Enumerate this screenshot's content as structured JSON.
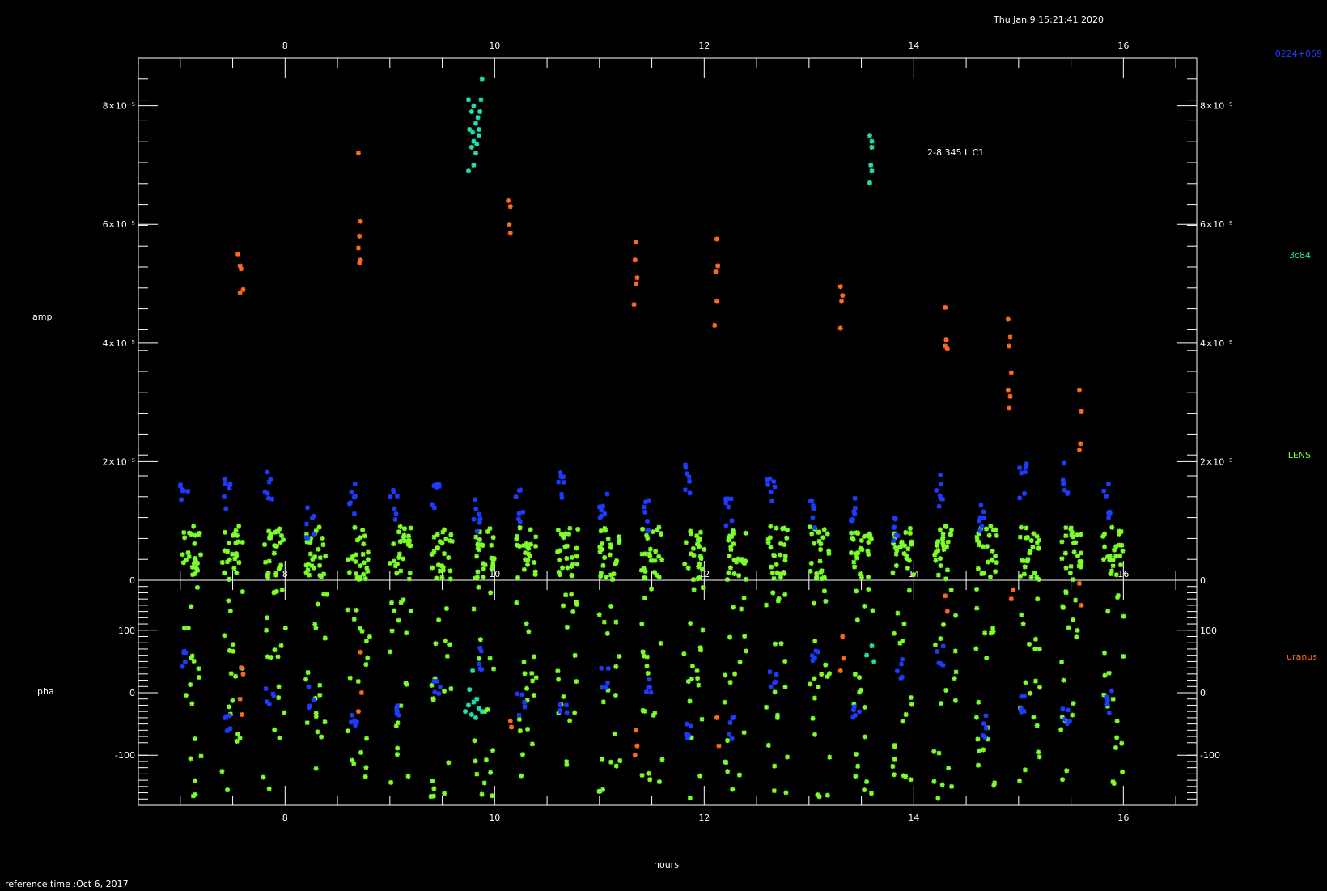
{
  "header": {
    "timestamp": "Thu Jan  9 15:21:41 2020"
  },
  "footer": {
    "reference": "reference time :Oct  6, 2017"
  },
  "annotation": "2-8 345 L C1",
  "sources": [
    {
      "name": "0224+069",
      "color": "#1e3cff"
    },
    {
      "name": "3c84",
      "color": "#20e0b0"
    },
    {
      "name": "LENS",
      "color": "#7cff2a"
    },
    {
      "name": "uranus",
      "color": "#ff6a20"
    }
  ],
  "chart_data": {
    "type": "scatter",
    "xlabel": "hours",
    "xlim": [
      6.6,
      16.7
    ],
    "xticks": [
      "8",
      "10",
      "12",
      "14",
      "16"
    ],
    "panels": [
      {
        "name": "amp",
        "ylabel": "amp",
        "ylim": [
          0,
          8.8e-05
        ],
        "yticks": [
          {
            "v": 0,
            "label": "0"
          },
          {
            "v": 2e-05,
            "label": "2×10⁻⁵"
          },
          {
            "v": 4e-05,
            "label": "4×10⁻⁵"
          },
          {
            "v": 6e-05,
            "label": "6×10⁻⁵"
          },
          {
            "v": 8e-05,
            "label": "8×10⁻⁵"
          }
        ],
        "series": [
          {
            "name": "uranus",
            "x": [
              7.55,
              7.57,
              7.58,
              7.57,
              7.6,
              8.7,
              8.72,
              8.71,
              8.7,
              8.72,
              8.71,
              10.13,
              10.15,
              10.14,
              10.15,
              11.35,
              11.34,
              11.36,
              11.33,
              11.35,
              12.12,
              12.13,
              12.11,
              12.12,
              12.1,
              13.3,
              13.32,
              13.31,
              13.3,
              14.3,
              14.31,
              14.3,
              14.32,
              14.9,
              14.92,
              14.91,
              14.93,
              14.9,
              14.92,
              14.91,
              15.58,
              15.6,
              15.59,
              15.58
            ],
            "y": [
              5.5e-05,
              5.3e-05,
              5.25e-05,
              4.85e-05,
              4.9e-05,
              7.2e-05,
              6.05e-05,
              5.8e-05,
              5.6e-05,
              5.4e-05,
              5.35e-05,
              6.4e-05,
              6.3e-05,
              6e-05,
              5.85e-05,
              5.7e-05,
              5.4e-05,
              5.1e-05,
              4.65e-05,
              5e-05,
              5.75e-05,
              5.3e-05,
              5.2e-05,
              4.7e-05,
              4.3e-05,
              4.95e-05,
              4.8e-05,
              4.7e-05,
              4.25e-05,
              4.6e-05,
              4.05e-05,
              3.95e-05,
              3.9e-05,
              4.4e-05,
              4.1e-05,
              3.95e-05,
              3.5e-05,
              3.2e-05,
              3.1e-05,
              2.9e-05,
              3.2e-05,
              2.85e-05,
              2.3e-05,
              2.2e-05
            ]
          },
          {
            "name": "3c84",
            "x": [
              9.75,
              9.78,
              9.8,
              9.82,
              9.85,
              9.88,
              9.76,
              9.8,
              9.84,
              9.78,
              9.82,
              9.86,
              9.79,
              9.83,
              9.8,
              9.75,
              9.85,
              9.87,
              13.58,
              13.6,
              13.59,
              13.6,
              13.58,
              13.6
            ],
            "y": [
              8.1e-05,
              7.9e-05,
              8e-05,
              7.7e-05,
              7.5e-05,
              8.45e-05,
              7.6e-05,
              7.4e-05,
              7.8e-05,
              7.3e-05,
              7.2e-05,
              7.9e-05,
              7.55e-05,
              7.35e-05,
              7e-05,
              6.9e-05,
              7.6e-05,
              8.1e-05,
              7.5e-05,
              7.3e-05,
              7e-05,
              6.9e-05,
              6.7e-05,
              7.4e-05
            ]
          }
        ]
      },
      {
        "name": "pha",
        "ylabel": "pha",
        "ylim": [
          -180,
          180
        ],
        "yticks": [
          {
            "v": 100,
            "label": "100"
          },
          {
            "v": 0,
            "label": "0"
          },
          {
            "v": -100,
            "label": "-100"
          }
        ],
        "series": [
          {
            "name": "uranus",
            "x": [
              7.58,
              7.6,
              7.57,
              7.59,
              8.72,
              8.73,
              8.7,
              10.15,
              10.16,
              11.35,
              11.36,
              11.34,
              12.12,
              12.14,
              13.32,
              13.33,
              13.3,
              14.3,
              14.32,
              14.95,
              14.93,
              15.6,
              15.58
            ],
            "y": [
              40,
              30,
              -10,
              -35,
              65,
              0,
              -30,
              -45,
              -55,
              -60,
              -85,
              -100,
              -40,
              -85,
              90,
              55,
              35,
              155,
              130,
              165,
              150,
              140,
              175
            ]
          },
          {
            "name": "3c84",
            "x": [
              9.72,
              9.75,
              9.78,
              9.8,
              9.82,
              9.85,
              9.88,
              9.76,
              9.83,
              9.79,
              13.55,
              13.6,
              13.62
            ],
            "y": [
              -30,
              -20,
              -35,
              -15,
              -40,
              -25,
              -30,
              5,
              -10,
              35,
              60,
              75,
              50
            ]
          }
        ]
      }
    ]
  }
}
